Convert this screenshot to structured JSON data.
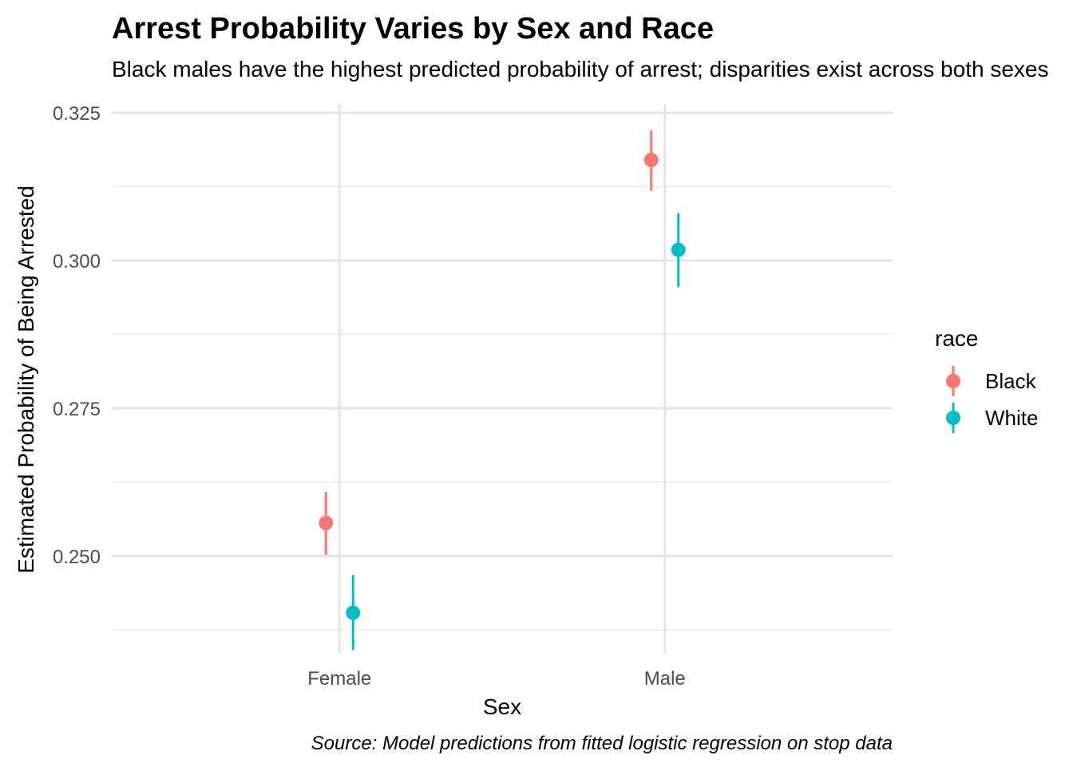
{
  "chart_data": {
    "type": "scatter",
    "title": "Arrest Probability Varies by Sex and Race",
    "subtitle": "Black males have the highest predicted probability of arrest; disparities exist across both sexes",
    "xlabel": "Sex",
    "ylabel": "Estimated Probability of Being Arrested",
    "caption": "Source: Model predictions from fitted logistic regression on stop data",
    "categories": [
      "Female",
      "Male"
    ],
    "ylim": [
      0.2335,
      0.3265
    ],
    "yticks": [
      0.25,
      0.275,
      0.3,
      0.325
    ],
    "ytick_labels": [
      "0.250",
      "0.275",
      "0.300",
      "0.325"
    ],
    "grid": true,
    "legend": {
      "title": "race",
      "position": "right"
    },
    "series": [
      {
        "name": "Black",
        "color": "#F8766D",
        "values": [
          0.2556,
          0.317
        ],
        "lower": [
          0.2502,
          0.3118
        ],
        "upper": [
          0.2608,
          0.322
        ]
      },
      {
        "name": "White",
        "color": "#00BFC4",
        "values": [
          0.2404,
          0.3018
        ],
        "lower": [
          0.2341,
          0.2955
        ],
        "upper": [
          0.2468,
          0.308
        ]
      }
    ]
  }
}
